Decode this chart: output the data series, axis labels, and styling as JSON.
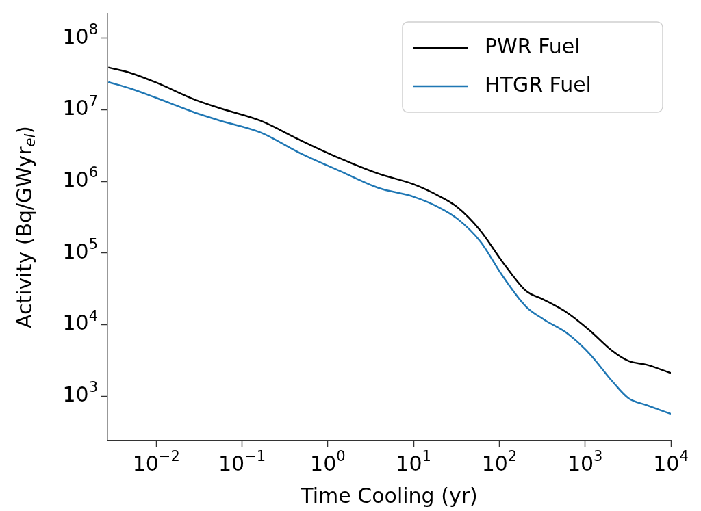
{
  "chart_data": {
    "type": "line",
    "xlabel": "Time Cooling (yr)",
    "ylabel": "Activity (Bq/GWyr$_{el}$)",
    "log": "xy",
    "grid": false,
    "legend": "top right",
    "marker": "none",
    "line_style": "solid",
    "x": [
      0.00276,
      0.0049,
      0.01,
      0.0285,
      0.057,
      0.166,
      0.47,
      1.38,
      3.9,
      10,
      20,
      32.5,
      60,
      109,
      204,
      330,
      615,
      1130,
      2070,
      3210,
      5200,
      10000
    ],
    "xlim": [
      0.0027,
      10000
    ],
    "ylim": [
      240,
      220000000
    ],
    "xticks": [
      {
        "value": 0.01,
        "label": "10$^{−2}$"
      },
      {
        "value": 0.1,
        "label": "10$^{−1}$"
      },
      {
        "value": 1,
        "label": "10$^{0}$"
      },
      {
        "value": 10,
        "label": "10$^{1}$"
      },
      {
        "value": 100,
        "label": "10$^{2}$"
      },
      {
        "value": 1000,
        "label": "10$^{3}$"
      },
      {
        "value": 10000,
        "label": "10$^{4}$"
      }
    ],
    "yticks": [
      {
        "value": 1000,
        "label": "10$^{3}$"
      },
      {
        "value": 10000,
        "label": "10$^{4}$"
      },
      {
        "value": 100000,
        "label": "10$^{5}$"
      },
      {
        "value": 1000000,
        "label": "10$^{6}$"
      },
      {
        "value": 10000000,
        "label": "10$^{7}$"
      },
      {
        "value": 100000000,
        "label": "10$^{8}$"
      }
    ],
    "series": [
      {
        "name": "PWR Fuel",
        "color": "#000000",
        "values": [
          39000000,
          33000000,
          24000000,
          13800000,
          10400000,
          7000000,
          3800000,
          2100000,
          1280000,
          910000,
          620000,
          435000,
          206000,
          75000,
          29700,
          22300,
          14700,
          8300,
          4300,
          3100,
          2750,
          2100
        ]
      },
      {
        "name": "HTGR Fuel",
        "color": "#1f77b4",
        "values": [
          24400000,
          20000000,
          14700000,
          9100000,
          7000000,
          4800000,
          2500000,
          1400000,
          810000,
          610000,
          430000,
          300000,
          145000,
          48000,
          17900,
          11800,
          7600,
          3900,
          1620,
          935,
          750,
          565
        ]
      }
    ]
  }
}
